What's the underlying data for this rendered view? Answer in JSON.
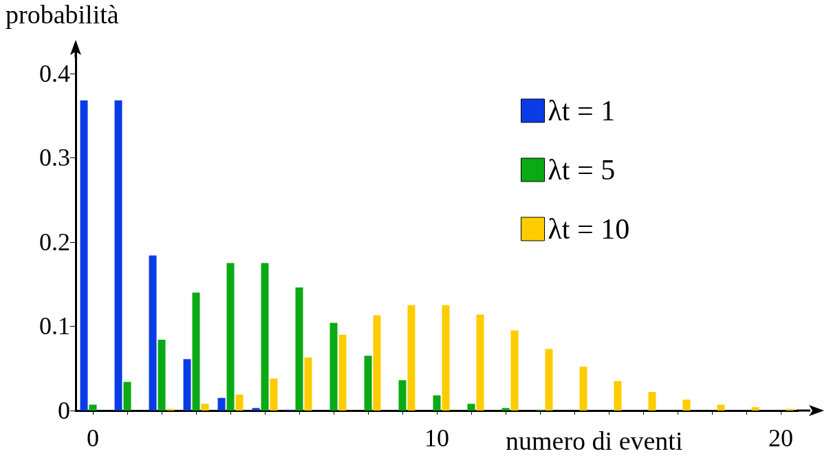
{
  "chart_data": {
    "type": "bar",
    "xlabel": "numero di eventi",
    "ylabel": "probabilità",
    "categories": [
      "0",
      null,
      null,
      null,
      null,
      null,
      null,
      null,
      null,
      null,
      "10",
      null,
      null,
      null,
      null,
      null,
      null,
      null,
      null,
      null,
      "20"
    ],
    "series": [
      {
        "name": "λt = 1",
        "color": "#0a3ce6",
        "values": [
          0.368,
          0.368,
          0.184,
          0.061,
          0.015,
          0.003,
          0.001,
          0,
          0,
          0,
          0,
          0,
          0,
          0,
          0,
          0,
          0,
          0,
          0,
          0,
          0
        ]
      },
      {
        "name": "λt = 5",
        "color": "#0aaa14",
        "values": [
          0.007,
          0.034,
          0.084,
          0.14,
          0.175,
          0.175,
          0.146,
          0.104,
          0.065,
          0.036,
          0.018,
          0.008,
          0.003,
          0.001,
          0,
          0,
          0,
          0,
          0,
          0,
          0
        ]
      },
      {
        "name": "λt = 10",
        "color": "#ffcc00",
        "values": [
          0,
          0,
          0.002,
          0.008,
          0.019,
          0.038,
          0.063,
          0.09,
          0.113,
          0.125,
          0.125,
          0.114,
          0.095,
          0.073,
          0.052,
          0.035,
          0.022,
          0.013,
          0.007,
          0.004,
          0.002
        ]
      }
    ],
    "ylim": [
      0,
      0.43
    ],
    "yticks": [
      0,
      0.1,
      0.2,
      0.3,
      0.4
    ],
    "grid": false,
    "legend": "top right"
  }
}
